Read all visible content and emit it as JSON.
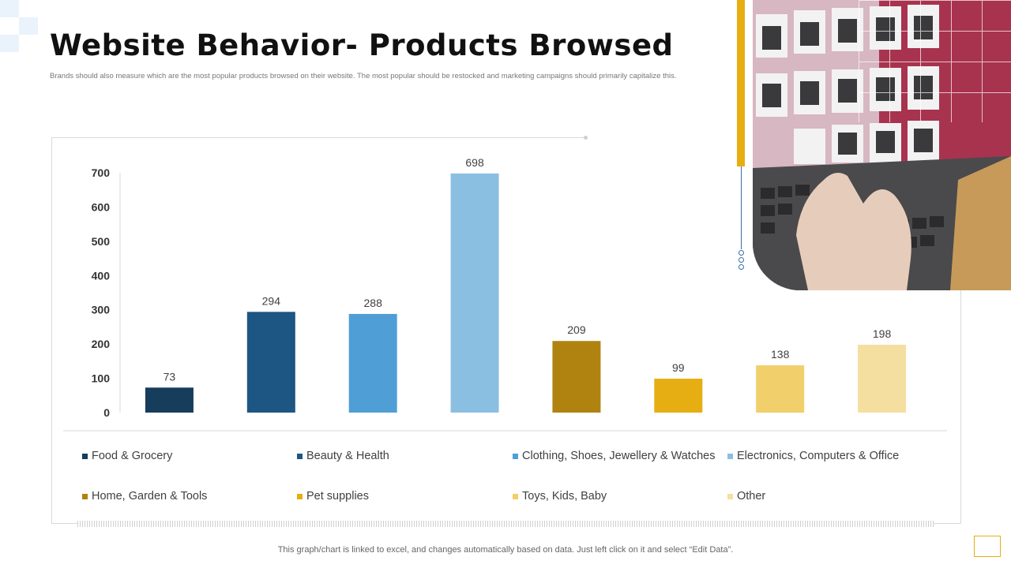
{
  "page": {
    "title": "Website Behavior- Products Browsed",
    "subtitle": "Brands should also measure which are the most popular products browsed on their website. The most popular should be restocked and marketing campaigns should primarily capitalize this.",
    "footer_note": "This graph/chart is linked to excel, and changes automatically based on data. Just left click on it and select “Edit Data”."
  },
  "chart_data": {
    "type": "bar",
    "title": "",
    "xlabel": "",
    "ylabel": "",
    "ylim": [
      0,
      700
    ],
    "yticks": [
      0,
      100,
      200,
      300,
      400,
      500,
      600,
      700
    ],
    "grid": false,
    "legend_position": "bottom",
    "categories": [
      "Food & Grocery",
      "Beauty & Health",
      "Clothing, Shoes, Jewellery & Watches",
      "Electronics, Computers & Office",
      "Home, Garden & Tools",
      "Pet supplies",
      "Toys, Kids, Baby",
      "Other"
    ],
    "values": [
      73,
      294,
      288,
      698,
      209,
      99,
      138,
      198
    ],
    "colors": [
      "#163d5c",
      "#1d5683",
      "#4f9fd6",
      "#8bbfe2",
      "#b08310",
      "#e6ae12",
      "#f1cf6b",
      "#f5dfa0"
    ]
  }
}
